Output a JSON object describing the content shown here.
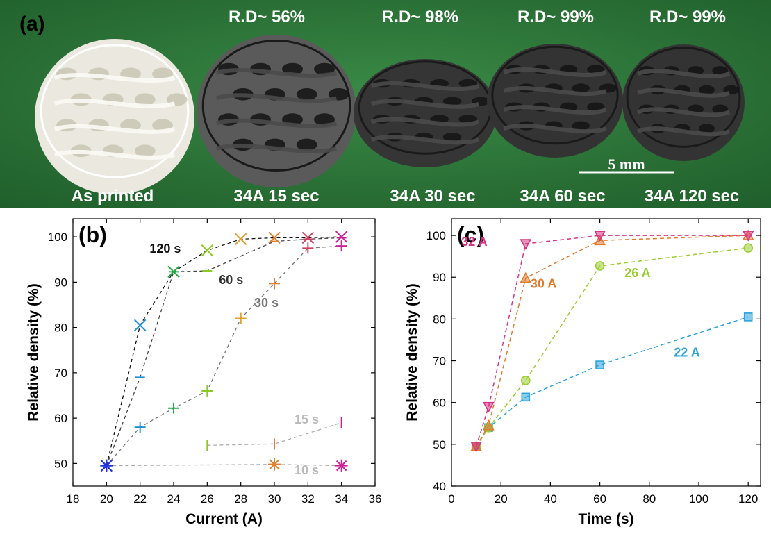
{
  "photo": {
    "panel_label": "(a)",
    "samples": [
      {
        "caption": "As printed",
        "density_label": "",
        "color": "#ebe9df"
      },
      {
        "caption": "34A 15 sec",
        "density_label": "R.D~ 56%",
        "color": "#5a5a5a"
      },
      {
        "caption": "34A 30 sec",
        "density_label": "R.D~ 98%",
        "color": "#353535"
      },
      {
        "caption": "34A 60 sec",
        "density_label": "R.D~ 99%",
        "color": "#333333"
      },
      {
        "caption": "34A 120 sec",
        "density_label": "R.D~ 99%",
        "color": "#333333"
      }
    ],
    "scale_bar_label": "5 mm"
  },
  "chart_data": [
    {
      "type": "scatter",
      "panel_label": "(b)",
      "xlabel": "Current (A)",
      "ylabel": "Relative density (%)",
      "xlim": [
        18,
        36
      ],
      "ylim": [
        45,
        104
      ],
      "xticks": [
        18,
        20,
        22,
        24,
        26,
        28,
        30,
        32,
        34,
        36
      ],
      "yticks": [
        50,
        60,
        70,
        80,
        90,
        100
      ],
      "grid": false,
      "series": [
        {
          "name": "120 s",
          "line_color": "#111111",
          "label_color": "#111111",
          "marker": "x",
          "points": [
            {
              "x": 20,
              "y": 49.5,
              "color": "#2233dd"
            },
            {
              "x": 22,
              "y": 80.5,
              "color": "#1e90d6"
            },
            {
              "x": 24,
              "y": 92.3,
              "color": "#22aa44"
            },
            {
              "x": 26,
              "y": 97,
              "color": "#88cc22"
            },
            {
              "x": 28,
              "y": 99.5,
              "color": "#e0a030"
            },
            {
              "x": 30,
              "y": 99.8,
              "color": "#e08030"
            },
            {
              "x": 32,
              "y": 99.8,
              "color": "#d04060"
            },
            {
              "x": 34,
              "y": 100,
              "color": "#cc2299"
            }
          ]
        },
        {
          "name": "60 s",
          "line_color": "#444444",
          "label_color": "#333333",
          "marker": "dash",
          "points": [
            {
              "x": 20,
              "y": 49.5,
              "color": "#2233dd"
            },
            {
              "x": 22,
              "y": 69,
              "color": "#1e90d6"
            },
            {
              "x": 24,
              "y": 92.3,
              "color": "#22aa44"
            },
            {
              "x": 26,
              "y": 92.5,
              "color": "#88cc22"
            },
            {
              "x": 30,
              "y": 99,
              "color": "#e08030"
            },
            {
              "x": 32,
              "y": 99.5,
              "color": "#d04060"
            },
            {
              "x": 34,
              "y": 99.8,
              "color": "#cc2299"
            }
          ]
        },
        {
          "name": "30 s",
          "line_color": "#777777",
          "label_color": "#777777",
          "marker": "plus",
          "points": [
            {
              "x": 20,
              "y": 49.5,
              "color": "#2233dd"
            },
            {
              "x": 22,
              "y": 58,
              "color": "#1e90d6"
            },
            {
              "x": 24,
              "y": 62.2,
              "color": "#22aa44"
            },
            {
              "x": 26,
              "y": 66,
              "color": "#88cc22"
            },
            {
              "x": 28,
              "y": 82,
              "color": "#e0a030"
            },
            {
              "x": 30,
              "y": 89.7,
              "color": "#e08030"
            },
            {
              "x": 32,
              "y": 97.5,
              "color": "#d04060"
            },
            {
              "x": 34,
              "y": 98,
              "color": "#cc2299"
            }
          ]
        },
        {
          "name": "15 s",
          "line_color": "#aaaaaa",
          "label_color": "#bbbbbb",
          "marker": "vbar",
          "points": [
            {
              "x": 26,
              "y": 54,
              "color": "#88cc22"
            },
            {
              "x": 30,
              "y": 54.3,
              "color": "#e08030"
            },
            {
              "x": 34,
              "y": 59,
              "color": "#cc2299"
            }
          ]
        },
        {
          "name": "10 s",
          "line_color": "#aaaaaa",
          "label_color": "#bbbbbb",
          "marker": "star",
          "points": [
            {
              "x": 20,
              "y": 49.5,
              "color": "#2233dd"
            },
            {
              "x": 30,
              "y": 49.8,
              "color": "#e08030"
            },
            {
              "x": 34,
              "y": 49.5,
              "color": "#cc2299"
            }
          ]
        }
      ]
    },
    {
      "type": "line",
      "panel_label": "(c)",
      "xlabel": "Time (s)",
      "ylabel": "Relative density (%)",
      "xlim": [
        0,
        125
      ],
      "ylim": [
        40,
        104
      ],
      "xticks": [
        0,
        20,
        40,
        60,
        80,
        100,
        120
      ],
      "yticks": [
        40,
        50,
        60,
        70,
        80,
        90,
        100
      ],
      "grid": false,
      "series": [
        {
          "name": "32 A",
          "color": "#d63384",
          "marker": "triangle-down",
          "x": [
            10,
            15,
            30,
            60,
            120
          ],
          "y": [
            49.5,
            59,
            98,
            100,
            100
          ]
        },
        {
          "name": "30 A",
          "color": "#e07b2c",
          "marker": "triangle-up",
          "x": [
            10,
            15,
            30,
            60,
            120
          ],
          "y": [
            49.5,
            54.5,
            89.8,
            98.8,
            100
          ]
        },
        {
          "name": "26 A",
          "color": "#9acd32",
          "marker": "circle",
          "x": [
            10,
            15,
            30,
            60,
            120
          ],
          "y": [
            49.5,
            54,
            65.3,
            92.7,
            97
          ]
        },
        {
          "name": "22 A",
          "color": "#2ca3dc",
          "marker": "square",
          "x": [
            10,
            15,
            30,
            60,
            120
          ],
          "y": [
            49.5,
            54,
            61.3,
            69,
            80.5
          ]
        }
      ]
    }
  ]
}
